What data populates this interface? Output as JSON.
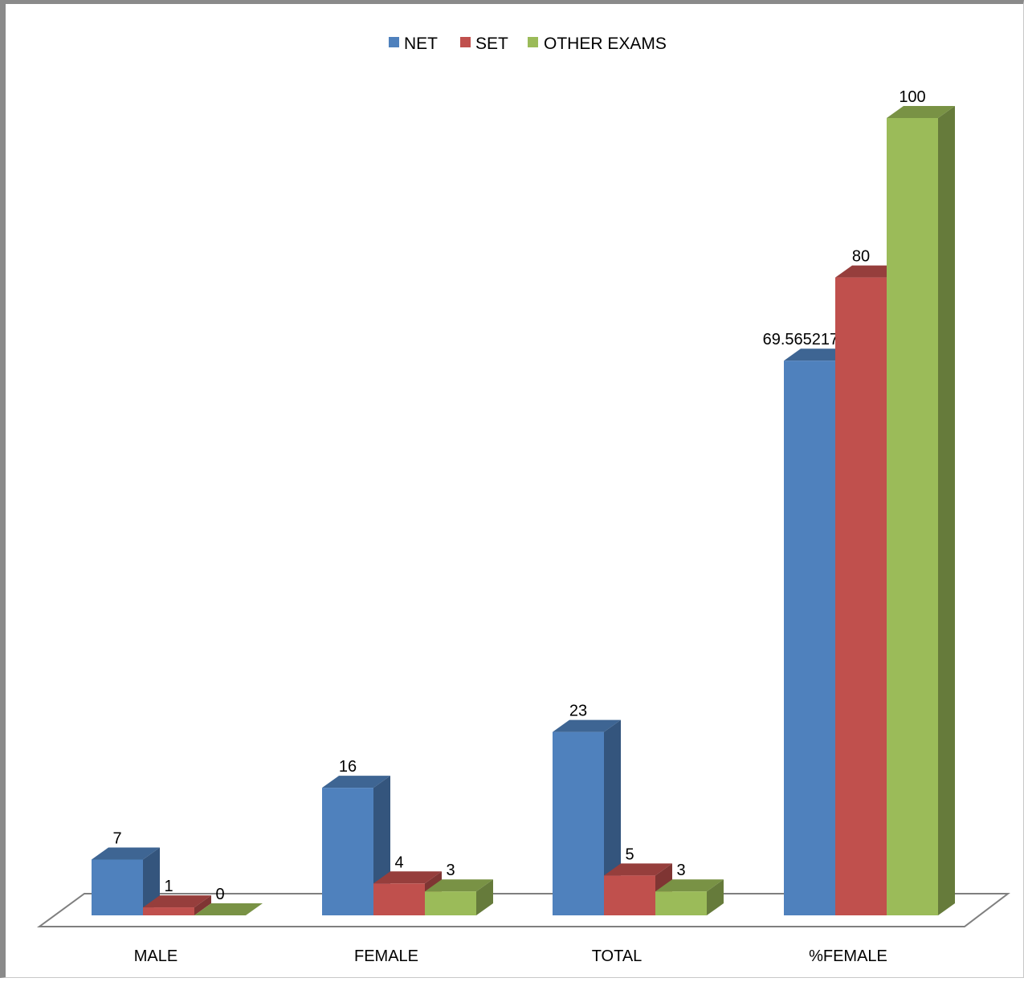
{
  "chart_data": {
    "type": "bar",
    "style": "3d-clustered-column",
    "categories": [
      "MALE",
      "FEMALE",
      "TOTAL",
      "%FEMALE"
    ],
    "series": [
      {
        "name": "NET",
        "values": [
          7,
          16,
          23,
          69.56521739
        ],
        "color": "#4F81BD"
      },
      {
        "name": "SET",
        "values": [
          1,
          4,
          5,
          80
        ],
        "color": "#C0504D"
      },
      {
        "name": "OTHER EXAMS",
        "values": [
          0,
          3,
          3,
          100
        ],
        "color": "#9BBB59"
      }
    ],
    "data_labels": [
      [
        "7",
        "16",
        "23",
        "69.56521739"
      ],
      [
        "1",
        "4",
        "5",
        "80"
      ],
      [
        "0",
        "3",
        "3",
        "100"
      ]
    ],
    "title": "",
    "xlabel": "",
    "ylabel": "",
    "ylim": [
      0,
      100
    ],
    "grid": false,
    "legend": "top-center"
  }
}
